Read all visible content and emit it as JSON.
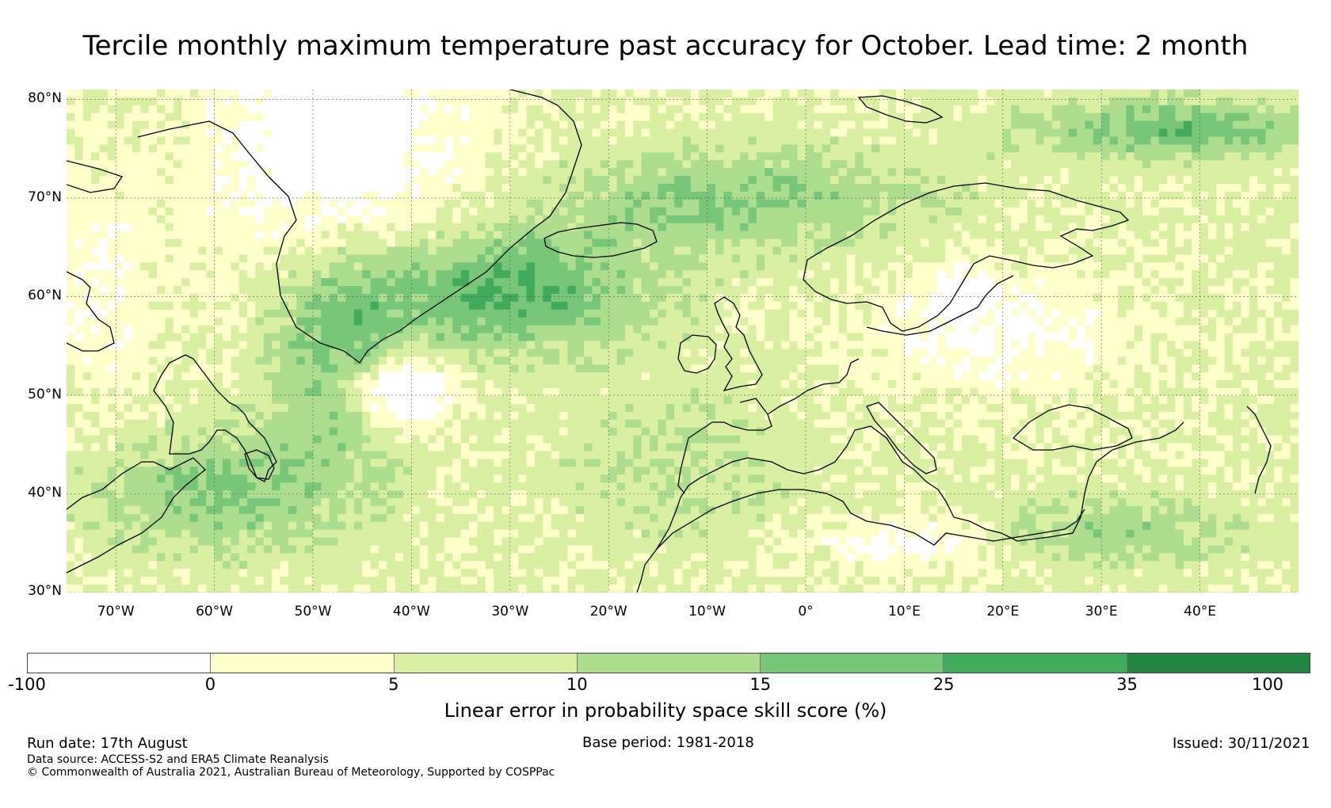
{
  "title": "Tercile monthly maximum temperature past accuracy for October. Lead time: 2 month",
  "map": {
    "projection": "PlateCarree",
    "lon_range": [
      -75,
      50
    ],
    "lat_range": [
      30,
      81
    ],
    "lat_ticks": [
      {
        "value": 80,
        "label": "80°N"
      },
      {
        "value": 70,
        "label": "70°N"
      },
      {
        "value": 60,
        "label": "60°N"
      },
      {
        "value": 50,
        "label": "50°N"
      },
      {
        "value": 40,
        "label": "40°N"
      },
      {
        "value": 30,
        "label": "30°N"
      }
    ],
    "lon_ticks": [
      {
        "value": -70,
        "label": "70°W"
      },
      {
        "value": -60,
        "label": "60°W"
      },
      {
        "value": -50,
        "label": "50°W"
      },
      {
        "value": -40,
        "label": "40°W"
      },
      {
        "value": -30,
        "label": "30°W"
      },
      {
        "value": -20,
        "label": "20°W"
      },
      {
        "value": -10,
        "label": "10°W"
      },
      {
        "value": 0,
        "label": "0°"
      },
      {
        "value": 10,
        "label": "10°E"
      },
      {
        "value": 20,
        "label": "20°E"
      },
      {
        "value": 30,
        "label": "30°E"
      },
      {
        "value": 40,
        "label": "40°E"
      }
    ],
    "gridlines": true
  },
  "colorbar": {
    "ticks": [
      "-100",
      "0",
      "5",
      "10",
      "15",
      "25",
      "35",
      "100"
    ],
    "colors": [
      "#ffffff",
      "#ffffcc",
      "#d9f0a3",
      "#addd8e",
      "#78c679",
      "#41ab5d",
      "#238443"
    ],
    "label": "Linear error in probability space skill score (%)"
  },
  "footer": {
    "run_date": "Run date: 17th August",
    "base_period": "Base period: 1981-2018",
    "issued": "Issued: 30/11/2021",
    "data_source": "Data source: ACCESS-S2 and ERA5 Climate Reanalysis",
    "copyright": "© Commonwealth of Australia 2021, Australian Bureau of Meteorology, Supported by COSPPac"
  }
}
